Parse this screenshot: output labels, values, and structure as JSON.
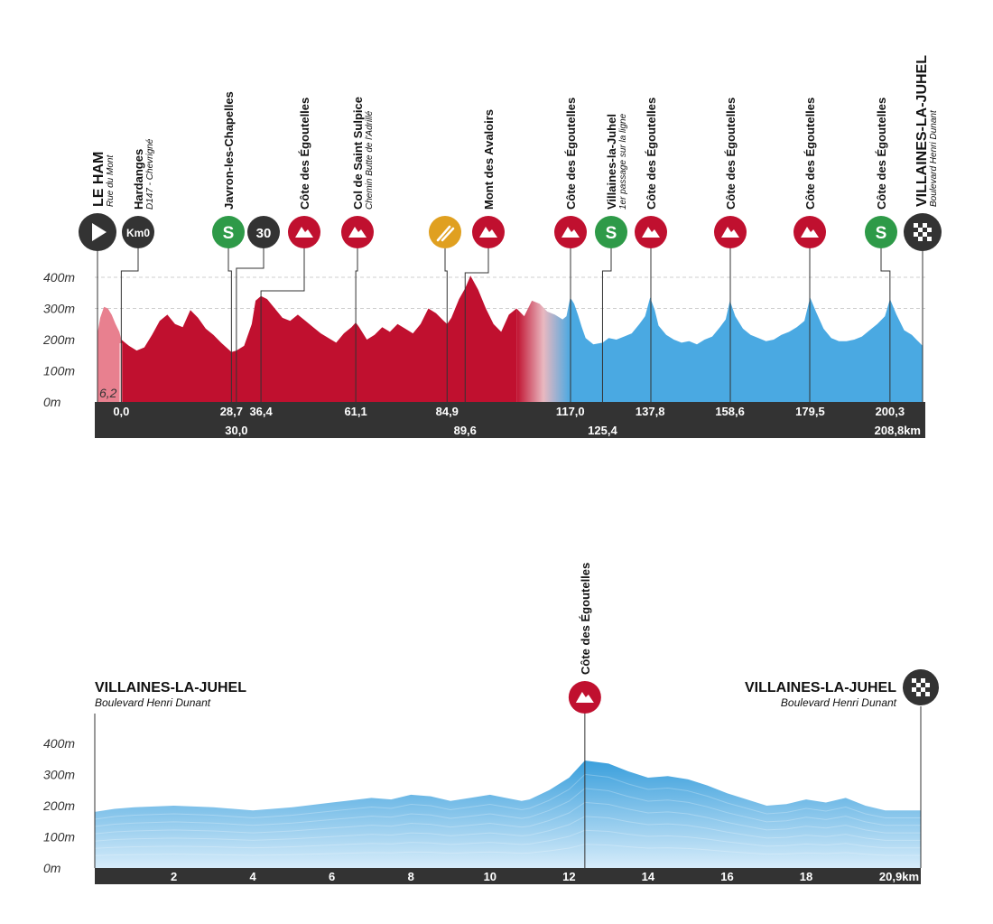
{
  "colors": {
    "red": "#c0102f",
    "red_neutral": "#e8808f",
    "blue": "#4aa9e2",
    "blue_light": "#cde7f8",
    "dark": "#333333",
    "sprint_green": "#2e9a48",
    "feed_orange": "#e0a020"
  },
  "chart_data": [
    {
      "type": "area",
      "unit_y": "m",
      "unit_x": "km",
      "ylim": [
        0,
        400
      ],
      "y_ticks": [
        "400m",
        "300m",
        "200m",
        "100m",
        "0m"
      ],
      "x_range": [
        -6.2,
        208.8
      ],
      "neutral_label": "6,2",
      "x_tick_row1": [
        {
          "x": 0,
          "label": "0,0"
        },
        {
          "x": 28.7,
          "label": "28,7"
        },
        {
          "x": 36.4,
          "label": "36,4"
        },
        {
          "x": 61.1,
          "label": "61,1"
        },
        {
          "x": 84.9,
          "label": "84,9"
        },
        {
          "x": 117.0,
          "label": "117,0"
        },
        {
          "x": 137.8,
          "label": "137,8"
        },
        {
          "x": 158.6,
          "label": "158,6"
        },
        {
          "x": 179.5,
          "label": "179,5"
        },
        {
          "x": 200.3,
          "label": "200,3"
        }
      ],
      "x_tick_row2": [
        {
          "x": 30.0,
          "label": "30,0"
        },
        {
          "x": 89.6,
          "label": "89,6"
        },
        {
          "x": 125.4,
          "label": "125,4"
        },
        {
          "x": 208.8,
          "label": "208,8km"
        }
      ],
      "profile": [
        [
          -6.2,
          220
        ],
        [
          -5.5,
          270
        ],
        [
          -4.5,
          305
        ],
        [
          -3.5,
          300
        ],
        [
          -2.5,
          280
        ],
        [
          -1.5,
          250
        ],
        [
          -0.5,
          225
        ],
        [
          0,
          200
        ],
        [
          2,
          180
        ],
        [
          4,
          165
        ],
        [
          6,
          175
        ],
        [
          8,
          215
        ],
        [
          10,
          260
        ],
        [
          12,
          280
        ],
        [
          14,
          250
        ],
        [
          16,
          240
        ],
        [
          18,
          295
        ],
        [
          20,
          270
        ],
        [
          22,
          235
        ],
        [
          24,
          215
        ],
        [
          26,
          190
        ],
        [
          28.7,
          160
        ],
        [
          30,
          165
        ],
        [
          32,
          180
        ],
        [
          34,
          250
        ],
        [
          35,
          325
        ],
        [
          36.4,
          340
        ],
        [
          38,
          330
        ],
        [
          40,
          300
        ],
        [
          42,
          270
        ],
        [
          44,
          260
        ],
        [
          46,
          280
        ],
        [
          48,
          260
        ],
        [
          50,
          240
        ],
        [
          52,
          220
        ],
        [
          54,
          205
        ],
        [
          56,
          190
        ],
        [
          58,
          220
        ],
        [
          60,
          240
        ],
        [
          61.1,
          255
        ],
        [
          62,
          240
        ],
        [
          64,
          200
        ],
        [
          66,
          215
        ],
        [
          68,
          240
        ],
        [
          70,
          225
        ],
        [
          72,
          250
        ],
        [
          74,
          235
        ],
        [
          76,
          220
        ],
        [
          78,
          250
        ],
        [
          80,
          300
        ],
        [
          82,
          285
        ],
        [
          84,
          260
        ],
        [
          84.9,
          250
        ],
        [
          86,
          270
        ],
        [
          88,
          330
        ],
        [
          89.6,
          365
        ],
        [
          91,
          405
        ],
        [
          93,
          360
        ],
        [
          95,
          300
        ],
        [
          97,
          250
        ],
        [
          99,
          225
        ],
        [
          101,
          280
        ],
        [
          103,
          300
        ],
        [
          105,
          275
        ],
        [
          107,
          325
        ],
        [
          109,
          315
        ],
        [
          111,
          290
        ],
        [
          113,
          280
        ],
        [
          115,
          265
        ],
        [
          116,
          275
        ],
        [
          117,
          335
        ],
        [
          118,
          315
        ],
        [
          119,
          280
        ],
        [
          120,
          240
        ],
        [
          121,
          205
        ],
        [
          123,
          185
        ],
        [
          125.4,
          190
        ],
        [
          127,
          205
        ],
        [
          129,
          200
        ],
        [
          131,
          210
        ],
        [
          133,
          220
        ],
        [
          135,
          250
        ],
        [
          136.5,
          275
        ],
        [
          137.8,
          335
        ],
        [
          139,
          295
        ],
        [
          140,
          245
        ],
        [
          142,
          215
        ],
        [
          144,
          200
        ],
        [
          146,
          190
        ],
        [
          148,
          195
        ],
        [
          150,
          185
        ],
        [
          152,
          200
        ],
        [
          154,
          210
        ],
        [
          156,
          240
        ],
        [
          157.5,
          265
        ],
        [
          158.6,
          325
        ],
        [
          160,
          275
        ],
        [
          162,
          235
        ],
        [
          164,
          215
        ],
        [
          166,
          205
        ],
        [
          168,
          195
        ],
        [
          170,
          200
        ],
        [
          172,
          215
        ],
        [
          174,
          225
        ],
        [
          176,
          240
        ],
        [
          178,
          260
        ],
        [
          179.5,
          335
        ],
        [
          181,
          290
        ],
        [
          183,
          235
        ],
        [
          185,
          205
        ],
        [
          187,
          195
        ],
        [
          189,
          195
        ],
        [
          191,
          200
        ],
        [
          193,
          210
        ],
        [
          195,
          230
        ],
        [
          197,
          250
        ],
        [
          199,
          275
        ],
        [
          200.3,
          330
        ],
        [
          202,
          280
        ],
        [
          204,
          230
        ],
        [
          206,
          215
        ],
        [
          208.8,
          180
        ]
      ],
      "ref_lines": [
        400,
        300
      ]
    },
    {
      "type": "area",
      "unit_y": "m",
      "unit_x": "km",
      "ylim": [
        0,
        400
      ],
      "y_ticks": [
        "400m",
        "300m",
        "200m",
        "100m",
        "0m"
      ],
      "x_range": [
        0,
        20.9
      ],
      "x_ticks": [
        {
          "x": 2,
          "label": "2"
        },
        {
          "x": 4,
          "label": "4"
        },
        {
          "x": 6,
          "label": "6"
        },
        {
          "x": 8,
          "label": "8"
        },
        {
          "x": 10,
          "label": "10"
        },
        {
          "x": 12,
          "label": "12"
        },
        {
          "x": 14,
          "label": "14"
        },
        {
          "x": 16,
          "label": "16"
        },
        {
          "x": 18,
          "label": "18"
        },
        {
          "x": 20.9,
          "label": "20,9km"
        }
      ],
      "profile": [
        [
          0,
          180
        ],
        [
          0.5,
          190
        ],
        [
          1,
          195
        ],
        [
          2,
          200
        ],
        [
          3,
          195
        ],
        [
          4,
          185
        ],
        [
          5,
          195
        ],
        [
          6,
          210
        ],
        [
          7,
          225
        ],
        [
          7.5,
          220
        ],
        [
          8,
          235
        ],
        [
          8.5,
          230
        ],
        [
          9,
          215
        ],
        [
          9.5,
          225
        ],
        [
          10,
          235
        ],
        [
          10.4,
          225
        ],
        [
          10.8,
          215
        ],
        [
          11,
          220
        ],
        [
          11.5,
          250
        ],
        [
          12,
          290
        ],
        [
          12.4,
          345
        ],
        [
          13,
          335
        ],
        [
          13.5,
          310
        ],
        [
          14,
          290
        ],
        [
          14.5,
          295
        ],
        [
          15,
          285
        ],
        [
          15.5,
          265
        ],
        [
          16,
          240
        ],
        [
          16.5,
          220
        ],
        [
          17,
          200
        ],
        [
          17.5,
          205
        ],
        [
          18,
          220
        ],
        [
          18.5,
          210
        ],
        [
          19,
          225
        ],
        [
          19.5,
          200
        ],
        [
          20,
          185
        ],
        [
          20.9,
          185
        ]
      ]
    }
  ],
  "stage1": {
    "start": {
      "x": -6.2,
      "title": "LE HAM",
      "subtitle": "Rue du Mont"
    },
    "km0": {
      "x": 0,
      "title": "Hardanges",
      "subtitle": "D147 - Chevrigné",
      "badge": "Km0"
    },
    "markers": [
      {
        "x": 28.7,
        "kind": "sprint",
        "badge": "S",
        "title": "Javron-les-Chapelles",
        "subtitle": ""
      },
      {
        "x": 30.0,
        "kind": "km",
        "badge": "30",
        "title": "",
        "subtitle": ""
      },
      {
        "x": 36.4,
        "kind": "climb",
        "badge": "",
        "title": "Côte des Égoutelles",
        "subtitle": ""
      },
      {
        "x": 61.1,
        "kind": "climb",
        "badge": "",
        "title": "Col de Saint Sulpice",
        "subtitle": "Chemin Butte de l'Adrillé"
      },
      {
        "x": 84.9,
        "kind": "feed",
        "badge": "",
        "title": "",
        "subtitle": ""
      },
      {
        "x": 89.6,
        "kind": "climb",
        "badge": "",
        "title": "Mont des Avaloirs",
        "subtitle": ""
      },
      {
        "x": 117.0,
        "kind": "climb",
        "badge": "",
        "title": "Côte des Égoutelles",
        "subtitle": ""
      },
      {
        "x": 125.4,
        "kind": "sprint",
        "badge": "S",
        "title": "Villaines-la-Juhel",
        "subtitle": "1er passage sur la ligne"
      },
      {
        "x": 137.8,
        "kind": "climb",
        "badge": "",
        "title": "Côte des Égoutelles",
        "subtitle": ""
      },
      {
        "x": 158.6,
        "kind": "climb",
        "badge": "",
        "title": "Côte des Égoutelles",
        "subtitle": ""
      },
      {
        "x": 179.5,
        "kind": "climb",
        "badge": "",
        "title": "Côte des Égoutelles",
        "subtitle": ""
      },
      {
        "x": 200.3,
        "kind": "sprint",
        "badge": "S",
        "title": "Côte des Égoutelles",
        "subtitle": ""
      }
    ],
    "finish": {
      "x": 208.8,
      "title": "VILLAINES-LA-JUHEL",
      "subtitle": "Boulevard Henri Dunant"
    }
  },
  "stage2": {
    "start": {
      "title": "VILLAINES-LA-JUHEL",
      "subtitle": "Boulevard Henri Dunant"
    },
    "climb": {
      "x": 12.4,
      "title": "Côte des Égoutelles"
    },
    "finish": {
      "title": "VILLAINES-LA-JUHEL",
      "subtitle": "Boulevard Henri Dunant"
    }
  }
}
